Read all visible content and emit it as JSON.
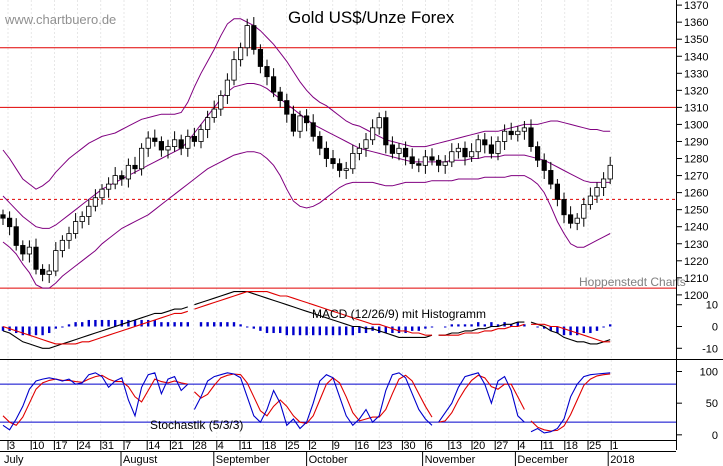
{
  "watermark": "www.chartbuero.de",
  "title": "Gold US$/Unze Forex",
  "source_label": "Hoppenstedt Charts",
  "macd_label": "MACD (12/26/9) mit Histogramm",
  "stoch_label": "Stochastik (5/3/3)",
  "colors": {
    "candle": "#000000",
    "bollinger": "#800080",
    "support_resistance": "#e00000",
    "stoch_ref": "#0000cc",
    "macd_line": "#000000",
    "macd_signal": "#e00000",
    "macd_hist": "#0000cc",
    "stoch_k": "#0000cc",
    "stoch_d": "#e00000"
  },
  "chart_data": [
    {
      "type": "candlestick",
      "title": "Gold US$/Unze Forex",
      "ylim": [
        1197,
        1373
      ],
      "y_ticks": [
        1200,
        1210,
        1220,
        1230,
        1240,
        1250,
        1260,
        1270,
        1280,
        1290,
        1300,
        1310,
        1320,
        1330,
        1340,
        1350,
        1360,
        1370
      ],
      "horizontal_levels_solid": [
        1345,
        1310,
        1204
      ],
      "horizontal_levels_dashed": [
        1256
      ],
      "close": [
        1245,
        1240,
        1229,
        1224,
        1228,
        1215,
        1212,
        1214,
        1226,
        1232,
        1236,
        1243,
        1246,
        1252,
        1257,
        1262,
        1265,
        1270,
        1268,
        1276,
        1274,
        1286,
        1292,
        1290,
        1285,
        1287,
        1291,
        1286,
        1293,
        1290,
        1297,
        1304,
        1309,
        1317,
        1326,
        1338,
        1345,
        1358,
        1344,
        1334,
        1328,
        1319,
        1314,
        1306,
        1296,
        1305,
        1301,
        1293,
        1286,
        1280,
        1277,
        1273,
        1274,
        1283,
        1286,
        1291,
        1298,
        1304,
        1288,
        1283,
        1286,
        1281,
        1277,
        1276,
        1281,
        1279,
        1276,
        1278,
        1284,
        1286,
        1281,
        1284,
        1291,
        1288,
        1283,
        1290,
        1296,
        1294,
        1296,
        1298,
        1287,
        1279,
        1273,
        1265,
        1256,
        1247,
        1242,
        1245,
        1253,
        1258,
        1263,
        1268,
        1276
      ],
      "upper_band": [
        1285,
        1280,
        1274,
        1268,
        1265,
        1262,
        1264,
        1267,
        1272,
        1276,
        1280,
        1283,
        1286,
        1289,
        1291,
        1293,
        1294,
        1295,
        1297,
        1299,
        1301,
        1303,
        1304,
        1305,
        1306,
        1306,
        1306,
        1307,
        1313,
        1322,
        1330,
        1337,
        1344,
        1352,
        1359,
        1362,
        1362,
        1360,
        1358,
        1355,
        1351,
        1347,
        1342,
        1337,
        1331,
        1325,
        1320,
        1316,
        1313,
        1311,
        1308,
        1305,
        1302,
        1300,
        1299,
        1297,
        1295,
        1293,
        1291,
        1290,
        1289,
        1288,
        1287,
        1287,
        1287,
        1288,
        1289,
        1290,
        1291,
        1292,
        1293,
        1294,
        1295,
        1296,
        1296,
        1296,
        1297,
        1298,
        1299,
        1300,
        1300,
        1300,
        1301,
        1302,
        1302,
        1301,
        1300,
        1299,
        1298,
        1297,
        1297,
        1296,
        1296
      ],
      "middle_band": [
        1258,
        1254,
        1250,
        1246,
        1243,
        1240,
        1239,
        1239,
        1241,
        1244,
        1247,
        1250,
        1253,
        1256,
        1259,
        1262,
        1264,
        1266,
        1268,
        1270,
        1272,
        1274,
        1276,
        1278,
        1280,
        1282,
        1284,
        1286,
        1290,
        1295,
        1300,
        1305,
        1310,
        1315,
        1319,
        1322,
        1323,
        1324,
        1324,
        1323,
        1321,
        1318,
        1315,
        1312,
        1309,
        1306,
        1303,
        1300,
        1298,
        1296,
        1294,
        1292,
        1290,
        1288,
        1286,
        1285,
        1284,
        1283,
        1282,
        1281,
        1280,
        1279,
        1278,
        1278,
        1278,
        1278,
        1278,
        1278,
        1279,
        1279,
        1279,
        1280,
        1280,
        1281,
        1281,
        1281,
        1282,
        1282,
        1282,
        1282,
        1281,
        1280,
        1279,
        1277,
        1275,
        1273,
        1271,
        1269,
        1267,
        1266,
        1266,
        1266,
        1266
      ],
      "lower_band": [
        1231,
        1228,
        1224,
        1218,
        1213,
        1206,
        1204,
        1204,
        1207,
        1211,
        1214,
        1217,
        1220,
        1223,
        1226,
        1230,
        1233,
        1236,
        1239,
        1241,
        1243,
        1245,
        1247,
        1250,
        1253,
        1256,
        1259,
        1262,
        1265,
        1268,
        1271,
        1274,
        1276,
        1278,
        1280,
        1282,
        1283,
        1284,
        1284,
        1283,
        1280,
        1276,
        1270,
        1262,
        1255,
        1252,
        1251,
        1252,
        1254,
        1257,
        1260,
        1263,
        1265,
        1266,
        1266,
        1266,
        1266,
        1265,
        1264,
        1264,
        1265,
        1266,
        1266,
        1266,
        1266,
        1267,
        1267,
        1267,
        1267,
        1268,
        1268,
        1268,
        1268,
        1269,
        1269,
        1269,
        1269,
        1270,
        1270,
        1270,
        1268,
        1265,
        1260,
        1252,
        1243,
        1236,
        1230,
        1228,
        1228,
        1230,
        1232,
        1234,
        1236
      ]
    },
    {
      "type": "line",
      "title": "MACD (12/26/9) mit Histogramm",
      "ylim": [
        -14,
        14
      ],
      "y_ticks": [
        10,
        0,
        -10
      ],
      "series": [
        {
          "values": [
            -2,
            -3,
            -5,
            -7,
            -8,
            -9,
            -10,
            -10,
            -9,
            -8,
            -7,
            -6,
            -5,
            -4,
            -3,
            -2,
            -1,
            0,
            1,
            2,
            3,
            4,
            5,
            6,
            6,
            7,
            8,
            8,
            9,
            10,
            11,
            12,
            13,
            14,
            15,
            16,
            16,
            16,
            15,
            14,
            13,
            12,
            11,
            10,
            9,
            8,
            7,
            6,
            5,
            4,
            3,
            2,
            1,
            0,
            0,
            -1,
            -1,
            -2,
            -3,
            -4,
            -5,
            -5,
            -5,
            -5,
            -5,
            -4,
            -4,
            -4,
            -3,
            -3,
            -2,
            -2,
            -1,
            -1,
            0,
            0,
            1,
            1,
            2,
            2,
            2,
            1,
            0,
            -2,
            -3,
            -5,
            -6,
            -7,
            -7,
            -8,
            -8,
            -7,
            -6
          ]
        },
        {
          "values": [
            0,
            -1,
            -2,
            -3,
            -4,
            -5,
            -6,
            -7,
            -8,
            -8,
            -8,
            -8,
            -7,
            -7,
            -6,
            -5,
            -4,
            -3,
            -2,
            -1,
            0,
            1,
            2,
            3,
            4,
            5,
            6,
            6,
            7,
            8,
            9,
            10,
            11,
            12,
            13,
            14,
            15,
            16,
            16,
            16,
            16,
            15,
            14,
            14,
            13,
            12,
            11,
            10,
            9,
            8,
            7,
            6,
            5,
            4,
            3,
            2,
            1,
            1,
            0,
            -1,
            -2,
            -2,
            -3,
            -3,
            -4,
            -4,
            -4,
            -4,
            -4,
            -4,
            -3,
            -3,
            -3,
            -2,
            -2,
            -1,
            -1,
            0,
            0,
            1,
            1,
            1,
            1,
            0,
            0,
            -1,
            -2,
            -3,
            -4,
            -5,
            -6,
            -7,
            -7
          ]
        },
        {
          "values": [
            -2,
            -2,
            -3,
            -4,
            -4,
            -4,
            -4,
            -3,
            -1,
            0,
            1,
            2,
            2,
            3,
            3,
            3,
            3,
            3,
            3,
            3,
            3,
            3,
            3,
            3,
            2,
            2,
            2,
            2,
            2,
            2,
            2,
            2,
            2,
            2,
            2,
            2,
            1,
            0,
            -1,
            -2,
            -3,
            -3,
            -3,
            -4,
            -4,
            -4,
            -4,
            -4,
            -4,
            -4,
            -4,
            -4,
            -4,
            -4,
            -3,
            -3,
            -2,
            -3,
            -3,
            -3,
            -3,
            -3,
            -2,
            -2,
            -1,
            0,
            0,
            0,
            1,
            1,
            1,
            1,
            2,
            1,
            2,
            1,
            2,
            1,
            2,
            1,
            1,
            0,
            -1,
            -2,
            -3,
            -4,
            -4,
            -4,
            -3,
            -3,
            -2,
            0,
            1
          ]
        }
      ]
    },
    {
      "type": "line",
      "title": "Stochastik (5/3/3)",
      "ylim": [
        -5,
        115
      ],
      "y_ticks": [
        100,
        50,
        0
      ],
      "ref_levels": [
        80,
        20
      ],
      "series": [
        {
          "values": [
            15,
            8,
            25,
            45,
            72,
            85,
            88,
            90,
            88,
            85,
            88,
            80,
            82,
            95,
            98,
            92,
            75,
            85,
            90,
            55,
            30,
            75,
            95,
            98,
            65,
            88,
            92,
            70,
            80,
            40,
            60,
            85,
            92,
            95,
            98,
            96,
            90,
            60,
            30,
            20,
            40,
            70,
            50,
            15,
            25,
            10,
            20,
            50,
            85,
            95,
            90,
            60,
            30,
            15,
            25,
            40,
            20,
            30,
            70,
            95,
            98,
            90,
            65,
            40,
            25,
            15,
            20,
            35,
            50,
            75,
            92,
            95,
            98,
            80,
            50,
            85,
            92,
            70,
            30,
            20,
            5,
            10,
            3,
            5,
            10,
            25,
            60,
            80,
            92,
            95,
            96,
            97,
            98
          ]
        },
        {
          "values": [
            30,
            20,
            15,
            28,
            50,
            72,
            82,
            86,
            88,
            86,
            86,
            84,
            83,
            88,
            92,
            94,
            88,
            84,
            84,
            76,
            60,
            52,
            70,
            88,
            84,
            82,
            85,
            82,
            80,
            68,
            58,
            64,
            78,
            90,
            94,
            96,
            95,
            82,
            60,
            38,
            30,
            45,
            55,
            45,
            30,
            20,
            18,
            30,
            55,
            80,
            90,
            82,
            60,
            35,
            22,
            25,
            28,
            28,
            40,
            65,
            88,
            94,
            85,
            65,
            45,
            28,
            20,
            22,
            35,
            55,
            72,
            86,
            94,
            90,
            76,
            72,
            80,
            80,
            60,
            40,
            22,
            12,
            8,
            6,
            7,
            14,
            32,
            55,
            78,
            88,
            93,
            95,
            96
          ]
        }
      ]
    }
  ],
  "x_axis": {
    "day_ticks": [
      "3",
      "10",
      "17",
      "24",
      "31",
      "7",
      "14",
      "21",
      "28",
      "4",
      "11",
      "18",
      "25",
      "2",
      "9",
      "16",
      "23",
      "30",
      "6",
      "13",
      "20",
      "27",
      "4",
      "11",
      "18",
      "25",
      "1"
    ],
    "month_labels": [
      "July",
      "August",
      "September",
      "October",
      "November",
      "December",
      "2018"
    ]
  }
}
